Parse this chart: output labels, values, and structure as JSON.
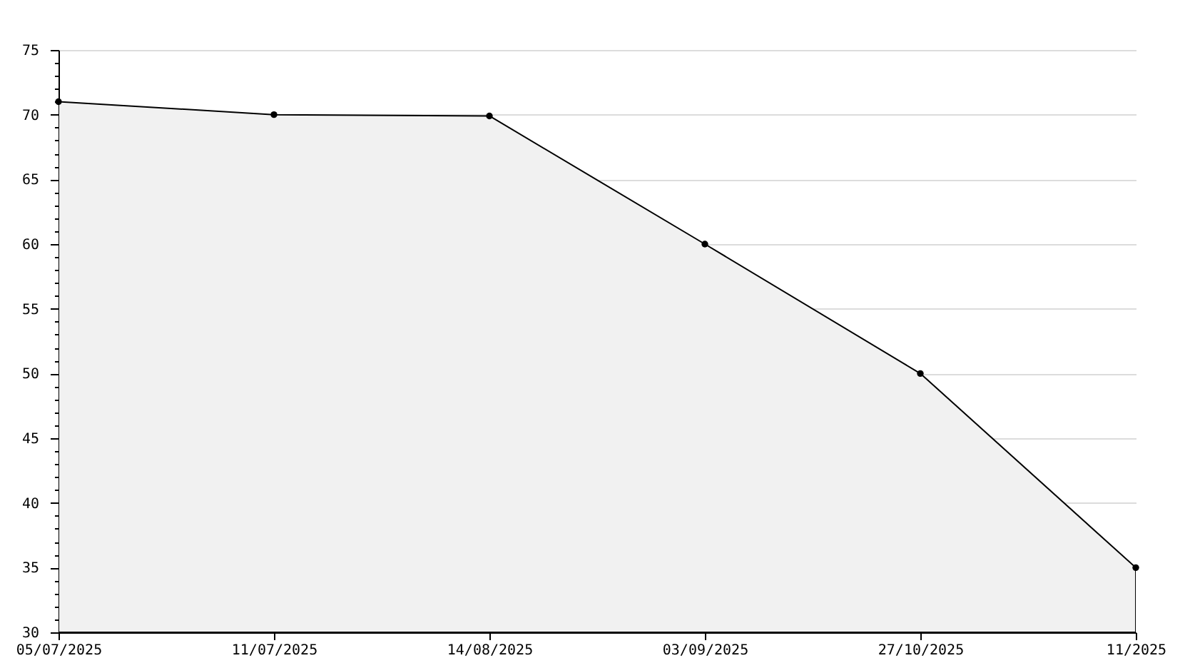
{
  "chart_data": {
    "type": "area",
    "categories": [
      "05/07/2025",
      "11/07/2025",
      "14/08/2025",
      "03/09/2025",
      "27/10/2025",
      "11/2025"
    ],
    "series": [
      {
        "color": "#000000",
        "values": [
          71,
          70,
          69.9,
          60,
          50,
          35
        ]
      }
    ],
    "ylim": [
      30,
      75
    ],
    "yticks": [
      30,
      {
        "value": 31,
        "label": null
      },
      {
        "value": 32,
        "label": null
      },
      {
        "value": 33,
        "label": null
      },
      {
        "value": 34,
        "label": null
      },
      35,
      {
        "value": 36,
        "label": null
      },
      {
        "value": 37,
        "label": null
      },
      {
        "value": 38,
        "label": null
      },
      {
        "value": 39,
        "label": null
      },
      40,
      {
        "value": 41,
        "label": null
      },
      {
        "value": 42,
        "label": null
      },
      {
        "value": 43,
        "label": null
      },
      {
        "value": 44,
        "label": null
      },
      45,
      {
        "value": 46,
        "label": null
      },
      {
        "value": 47,
        "label": null
      },
      {
        "value": 48,
        "label": null
      },
      {
        "value": 49,
        "label": null
      },
      50,
      {
        "value": 51,
        "label": null
      },
      {
        "value": 52,
        "label": null
      },
      {
        "value": 53,
        "label": null
      },
      {
        "value": 54,
        "label": null
      },
      55,
      {
        "value": 56,
        "label": null
      },
      {
        "value": 57,
        "label": null
      },
      {
        "value": 58,
        "label": null
      },
      {
        "value": 59,
        "label": null
      },
      60,
      {
        "value": 61,
        "label": null
      },
      {
        "value": 62,
        "label": null
      },
      {
        "value": 63,
        "label": null
      },
      {
        "value": 64,
        "label": null
      },
      65,
      {
        "value": 66,
        "label": null
      },
      {
        "value": 67,
        "label": null
      },
      {
        "value": 68,
        "label": null
      },
      {
        "value": 69,
        "label": null
      },
      70,
      {
        "value": 71,
        "label": null
      },
      {
        "value": 72,
        "label": null
      },
      {
        "value": 73,
        "label": null
      },
      {
        "value": 74,
        "label": null
      },
      75
    ],
    "grid": "y",
    "marker": "circle"
  }
}
